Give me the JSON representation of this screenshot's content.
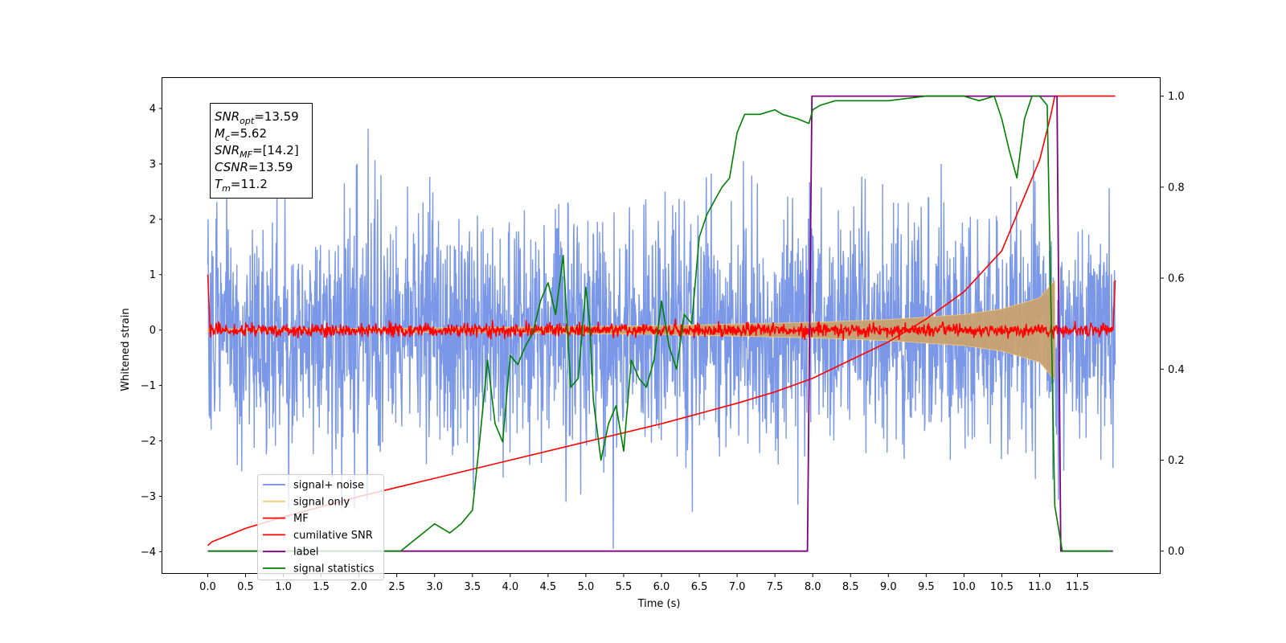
{
  "chart_data": {
    "type": "line",
    "xlabel": "Time (s)",
    "ylabel": "Whitened strain",
    "xlim": [
      -0.6,
      12.6
    ],
    "ylim": [
      -4.4,
      4.55
    ],
    "ylim_right": [
      -0.05,
      1.04
    ],
    "x_ticks": [
      "0.0",
      "0.5",
      "1.0",
      "1.5",
      "2.0",
      "2.5",
      "3.0",
      "3.5",
      "4.0",
      "4.5",
      "5.0",
      "5.5",
      "6.0",
      "6.5",
      "7.0",
      "7.5",
      "8.0",
      "8.5",
      "9.0",
      "9.5",
      "10.0",
      "10.5",
      "11.0",
      "11.5"
    ],
    "y_ticks": [
      "4",
      "3",
      "2",
      "1",
      "0",
      "−1",
      "−2",
      "−3",
      "−4"
    ],
    "y_ticks_right": [
      "1.0",
      "0.8",
      "0.6",
      "0.4",
      "0.2",
      "0.0"
    ],
    "grid": false,
    "legend_position": "lower-left",
    "stats_box": {
      "snr_opt": {
        "base": "SNR",
        "sub": "opt",
        "value": "=13.59"
      },
      "mc": {
        "base": "M",
        "sub": "c",
        "value": "=5.62"
      },
      "snr_mf": {
        "base": "SNR",
        "sub": "MF",
        "value": "=[14.2]"
      },
      "csnr": {
        "base": "CSNR",
        "sub": "",
        "value": "=13.59"
      },
      "tm": {
        "base": "T",
        "sub": "m",
        "value": "=11.2"
      }
    },
    "series": [
      {
        "name": "signal+ noise",
        "color": "#6b8ce6",
        "axis": "left",
        "description_values": {
          "amplitude_std": 1.05,
          "range": [
            -4.0,
            4.2
          ],
          "x_range": [
            0.0,
            12.0
          ]
        }
      },
      {
        "name": "signal only",
        "color": "#f5c97a",
        "axis": "left",
        "envelope": {
          "x": [
            0.0,
            2.0,
            4.0,
            6.0,
            8.0,
            9.0,
            10.0,
            10.5,
            11.0,
            11.2
          ],
          "amp": [
            0.02,
            0.03,
            0.05,
            0.08,
            0.14,
            0.19,
            0.28,
            0.38,
            0.58,
            0.9
          ]
        }
      },
      {
        "name": "MF",
        "color": "#ff0000",
        "axis": "left",
        "description_values": {
          "amplitude_std": 0.06,
          "edge_values": [
            1.0,
            0.9
          ],
          "x_range": [
            0.0,
            12.0
          ]
        }
      },
      {
        "name": "cumilative SNR",
        "color": "#ff0000",
        "axis": "right",
        "x": [
          0.0,
          0.05,
          0.5,
          1.0,
          2.0,
          3.0,
          4.0,
          5.0,
          6.0,
          7.0,
          7.5,
          8.0,
          8.5,
          9.0,
          9.5,
          10.0,
          10.5,
          11.0,
          11.15,
          11.2,
          12.0
        ],
        "y": [
          0.012,
          0.02,
          0.05,
          0.075,
          0.12,
          0.16,
          0.2,
          0.24,
          0.28,
          0.325,
          0.35,
          0.38,
          0.42,
          0.46,
          0.51,
          0.57,
          0.66,
          0.86,
          0.96,
          1.0,
          1.0
        ]
      },
      {
        "name": "label",
        "color": "#800080",
        "axis": "right",
        "x": [
          0.0,
          7.93,
          7.99,
          11.23,
          11.28,
          11.97
        ],
        "y": [
          0.0,
          0.0,
          1.0,
          1.0,
          0.0,
          0.0
        ]
      },
      {
        "name": "signal statistics",
        "color": "#008000",
        "axis": "right",
        "x": [
          0.0,
          2.5,
          2.55,
          2.7,
          2.85,
          3.0,
          3.2,
          3.35,
          3.5,
          3.6,
          3.7,
          3.8,
          3.9,
          4.0,
          4.1,
          4.2,
          4.3,
          4.4,
          4.5,
          4.6,
          4.7,
          4.8,
          4.9,
          5.0,
          5.05,
          5.1,
          5.2,
          5.3,
          5.4,
          5.5,
          5.6,
          5.7,
          5.8,
          5.9,
          6.0,
          6.1,
          6.2,
          6.3,
          6.4,
          6.5,
          6.6,
          6.7,
          6.8,
          6.9,
          7.0,
          7.1,
          7.3,
          7.5,
          7.6,
          7.8,
          7.95,
          8.0,
          8.1,
          8.3,
          8.5,
          9.0,
          9.5,
          10.0,
          10.2,
          10.4,
          10.5,
          10.6,
          10.7,
          10.8,
          10.9,
          11.0,
          11.1,
          11.2,
          11.3,
          11.5,
          11.95
        ],
        "y": [
          0.0,
          0.0,
          0.0,
          0.02,
          0.04,
          0.06,
          0.04,
          0.06,
          0.09,
          0.25,
          0.42,
          0.28,
          0.24,
          0.43,
          0.41,
          0.45,
          0.48,
          0.55,
          0.59,
          0.52,
          0.65,
          0.36,
          0.38,
          0.58,
          0.5,
          0.33,
          0.2,
          0.28,
          0.32,
          0.22,
          0.42,
          0.38,
          0.36,
          0.42,
          0.55,
          0.45,
          0.4,
          0.52,
          0.5,
          0.69,
          0.74,
          0.77,
          0.8,
          0.82,
          0.92,
          0.96,
          0.96,
          0.97,
          0.96,
          0.95,
          0.94,
          0.97,
          0.98,
          0.99,
          0.99,
          0.99,
          1.0,
          1.0,
          0.99,
          1.0,
          0.95,
          0.88,
          0.82,
          0.95,
          1.0,
          1.0,
          0.98,
          0.1,
          0.0,
          0.0,
          0.0
        ]
      }
    ]
  }
}
